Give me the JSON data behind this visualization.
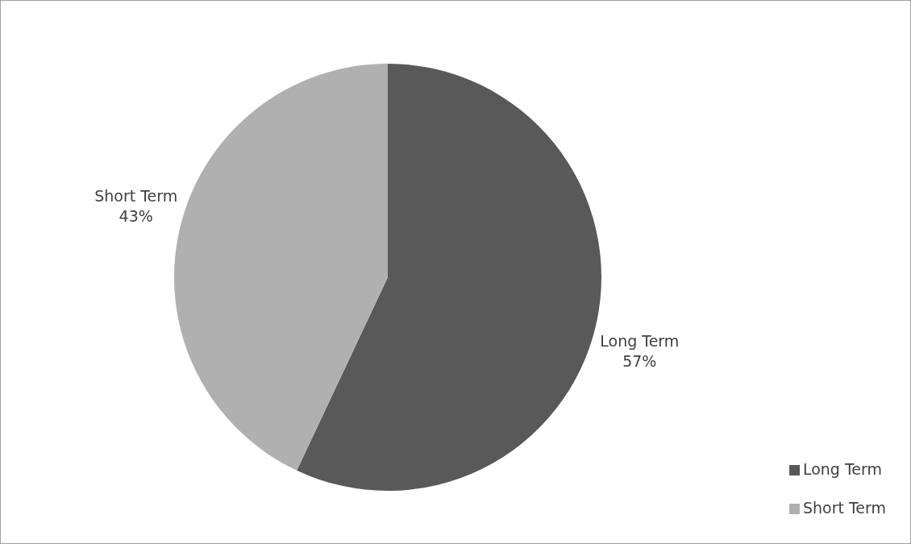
{
  "chart_data": {
    "type": "pie",
    "categories": [
      "Long Term",
      "Short Term"
    ],
    "values": [
      57,
      43
    ],
    "colors": [
      "#595959",
      "#b0b0b0"
    ],
    "value_labels": [
      "57%",
      "43%"
    ],
    "legend": "bottom right"
  }
}
